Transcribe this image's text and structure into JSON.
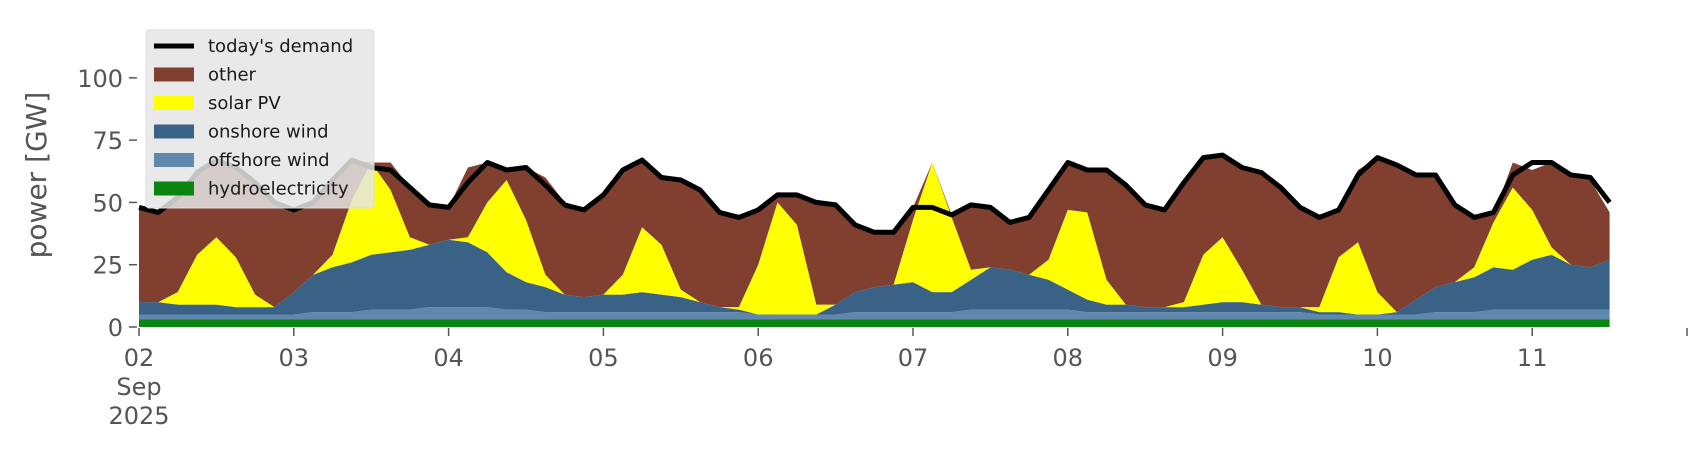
{
  "chart_data": {
    "type": "area",
    "x_start": "2025-09-02",
    "x_end": "2025-09-11T23:00",
    "x_step_hours": 3,
    "x_tick_labels": [
      "02",
      "03",
      "04",
      "05",
      "06",
      "07",
      "08",
      "09",
      "10",
      "11"
    ],
    "x_tick_sub_month": "Sep",
    "x_tick_sub_year": "2025",
    "xlabel": "",
    "ylabel": "power [GW]",
    "ylim": [
      0,
      120
    ],
    "yticks": [
      0,
      25,
      50,
      75,
      100
    ],
    "grid": false,
    "legend_position": "upper-left",
    "stack_order": [
      "hydroelectricity",
      "offshore wind",
      "onshore wind",
      "solar PV",
      "other"
    ],
    "legend_order": [
      "today's demand",
      "other",
      "solar PV",
      "onshore wind",
      "offshore wind",
      "hydroelectricity"
    ],
    "colors": {
      "today's demand": "#000000",
      "other": "#813f30",
      "solar PV": "#ffff00",
      "onshore wind": "#3a6186",
      "offshore wind": "#6087ad",
      "hydroelectricity": "#0c8510"
    },
    "series": [
      {
        "name": "today's demand",
        "type": "line",
        "values": [
          48,
          46,
          52,
          62,
          67,
          64,
          58,
          50,
          47,
          50,
          59,
          67,
          64,
          63,
          56,
          49,
          48,
          58,
          66,
          63,
          64,
          57,
          49,
          47,
          53,
          63,
          67,
          60,
          59,
          55,
          46,
          44,
          47,
          53,
          53,
          50,
          49,
          41,
          38,
          38,
          48,
          48,
          45,
          49,
          48,
          42,
          44,
          55,
          66,
          63,
          63,
          57,
          49,
          47,
          58,
          68,
          69,
          64,
          62,
          56,
          48,
          44,
          47,
          61,
          68,
          65,
          61,
          61,
          49,
          44,
          46,
          61,
          66,
          66,
          61,
          60,
          50
        ]
      },
      {
        "name": "hydroelectricity",
        "type": "area",
        "values": [
          3,
          3,
          3,
          3,
          3,
          3,
          3,
          3,
          3,
          3,
          3,
          3,
          3,
          3,
          3,
          3,
          3,
          3,
          3,
          3,
          3,
          3,
          3,
          3,
          3,
          3,
          3,
          3,
          3,
          3,
          3,
          3,
          3,
          3,
          3,
          3,
          3,
          3,
          3,
          3,
          3,
          3,
          3,
          3,
          3,
          3,
          3,
          3,
          3,
          3,
          3,
          3,
          3,
          3,
          3,
          3,
          3,
          3,
          3,
          3,
          3,
          3,
          3,
          3,
          3,
          3,
          3,
          3,
          3,
          3,
          3,
          3,
          3,
          3,
          3,
          3,
          3
        ]
      },
      {
        "name": "offshore wind",
        "type": "area",
        "values": [
          2,
          2,
          2,
          2,
          2,
          2,
          2,
          2,
          2,
          3,
          3,
          3,
          4,
          4,
          4,
          5,
          5,
          5,
          5,
          4,
          4,
          3,
          3,
          3,
          3,
          3,
          3,
          3,
          3,
          3,
          3,
          3,
          2,
          2,
          2,
          2,
          2,
          3,
          3,
          3,
          3,
          3,
          3,
          4,
          4,
          4,
          4,
          4,
          4,
          3,
          3,
          3,
          3,
          3,
          3,
          3,
          3,
          3,
          3,
          3,
          3,
          2,
          2,
          2,
          2,
          2,
          2,
          3,
          3,
          3,
          4,
          4,
          4,
          4,
          4,
          4,
          4
        ]
      },
      {
        "name": "onshore wind",
        "type": "area",
        "values": [
          5,
          5,
          4,
          4,
          4,
          3,
          3,
          3,
          9,
          15,
          18,
          20,
          22,
          23,
          24,
          25,
          27,
          26,
          22,
          15,
          11,
          10,
          7,
          6,
          7,
          7,
          8,
          7,
          6,
          4,
          2,
          1,
          0,
          0,
          0,
          0,
          4,
          8,
          10,
          11,
          12,
          8,
          8,
          12,
          17,
          16,
          14,
          12,
          8,
          5,
          3,
          3,
          2,
          2,
          2,
          3,
          4,
          4,
          3,
          2,
          2,
          1,
          1,
          0,
          0,
          1,
          6,
          10,
          12,
          14,
          17,
          16,
          20,
          22,
          18,
          17,
          20
        ]
      },
      {
        "name": "solar PV",
        "type": "area",
        "values": [
          0,
          0,
          5,
          20,
          27,
          20,
          5,
          0,
          0,
          0,
          5,
          25,
          37,
          25,
          5,
          0,
          0,
          2,
          20,
          37,
          25,
          5,
          0,
          0,
          0,
          8,
          26,
          20,
          3,
          0,
          0,
          1,
          20,
          45,
          36,
          4,
          0,
          0,
          0,
          0,
          25,
          52,
          30,
          4,
          0,
          0,
          0,
          8,
          32,
          35,
          10,
          0,
          0,
          0,
          2,
          20,
          26,
          13,
          0,
          0,
          0,
          2,
          22,
          29,
          9,
          0,
          0,
          0,
          0,
          4,
          18,
          33,
          20,
          3,
          0,
          0,
          0
        ]
      },
      {
        "name": "other",
        "type": "area",
        "values": [
          38,
          36,
          38,
          33,
          31,
          36,
          45,
          42,
          33,
          29,
          30,
          16,
          0,
          11,
          20,
          16,
          13,
          28,
          16,
          4,
          21,
          39,
          37,
          35,
          40,
          42,
          27,
          27,
          44,
          45,
          38,
          37,
          22,
          3,
          12,
          41,
          40,
          27,
          22,
          21,
          5,
          0,
          1,
          26,
          24,
          19,
          24,
          28,
          19,
          17,
          44,
          48,
          41,
          39,
          48,
          39,
          32,
          41,
          53,
          48,
          40,
          36,
          19,
          29,
          54,
          58,
          50,
          45,
          31,
          20,
          3,
          10,
          16,
          34,
          35,
          35,
          19
        ]
      }
    ]
  }
}
